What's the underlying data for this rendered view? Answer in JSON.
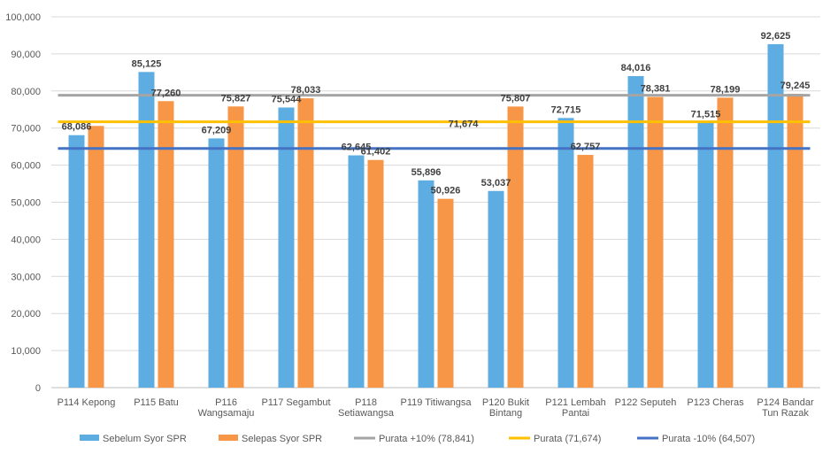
{
  "chart_data": {
    "type": "bar",
    "title": "",
    "xlabel": "",
    "ylabel": "",
    "ylim": [
      0,
      100000
    ],
    "yticks": [
      0,
      10000,
      20000,
      30000,
      40000,
      50000,
      60000,
      70000,
      80000,
      90000,
      100000
    ],
    "ytick_labels": [
      "0",
      "10,000",
      "20,000",
      "30,000",
      "40,000",
      "50,000",
      "60,000",
      "70,000",
      "80,000",
      "90,000",
      "100,000"
    ],
    "grid": true,
    "legend_position": "bottom",
    "categories": [
      [
        "P114 Kepong"
      ],
      [
        "P115 Batu"
      ],
      [
        "P116",
        "Wangsamaju"
      ],
      [
        "P117 Segambut"
      ],
      [
        "P118",
        "Setiawangsa"
      ],
      [
        "P119 Titiwangsa"
      ],
      [
        "P120 Bukit",
        "Bintang"
      ],
      [
        "P121 Lembah",
        "Pantai"
      ],
      [
        "P122 Seputeh"
      ],
      [
        "P123 Cheras"
      ],
      [
        "P124 Bandar",
        "Tun Razak"
      ]
    ],
    "series": [
      {
        "name": "Sebelum Syor SPR",
        "color": "#5DADE2",
        "values": [
          68086,
          85125,
          67209,
          75544,
          62645,
          55896,
          53037,
          72715,
          84016,
          71515,
          92625
        ],
        "labels": [
          "68,086",
          "85,125",
          "67,209",
          "75,544",
          "62,645",
          "55,896",
          "53,037",
          "72,715",
          "84,016",
          "71,515",
          "92,625"
        ]
      },
      {
        "name": "Selepas Syor SPR",
        "color": "#F79646",
        "values": [
          70574,
          77260,
          75827,
          78033,
          61402,
          50926,
          75807,
          62757,
          78381,
          78199,
          79245
        ],
        "labels": [
          "",
          "77,260",
          "75,827",
          "78,033",
          "61,402",
          "50,926",
          "75,807",
          "62,757",
          "78,381",
          "78,199",
          "79,245"
        ]
      }
    ],
    "reference_lines": [
      {
        "name": "Purata +10% (78,841)",
        "value": 78841,
        "color": "#A5A5A5",
        "label": ""
      },
      {
        "name": "Purata (71,674)",
        "value": 71674,
        "color": "#FFC000",
        "label": "71,674"
      },
      {
        "name": "Purata -10% (64,507)",
        "value": 64507,
        "color": "#4472C4",
        "label": ""
      }
    ]
  }
}
